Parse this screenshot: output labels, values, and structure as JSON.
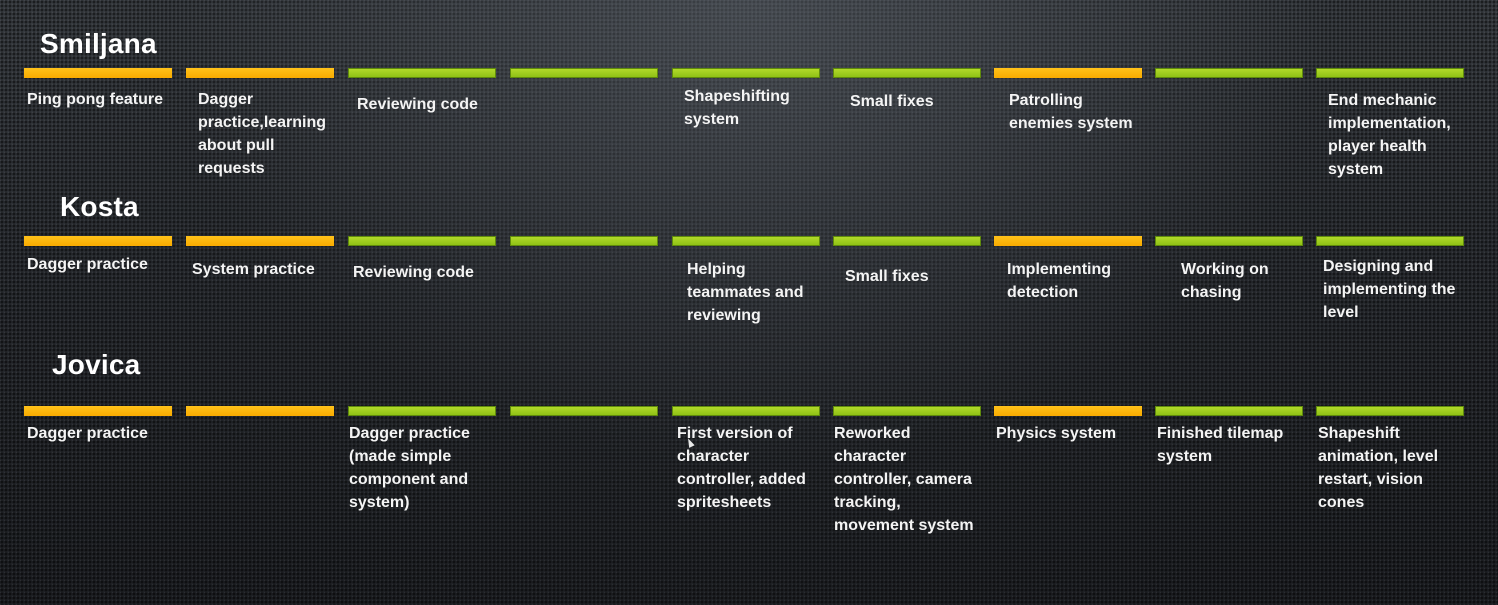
{
  "colors": {
    "done": "#f9ab00",
    "in_progress": "#8cbf13",
    "background": "#2b2e33",
    "text": "#ffffff"
  },
  "people": [
    {
      "name": "Smiljana",
      "bars": [
        "orange",
        "orange",
        "green",
        "green",
        "green",
        "green",
        "orange",
        "green",
        "green"
      ],
      "tasks": [
        "Ping pong feature",
        "Dagger practice,learning about pull requests",
        "Reviewing code",
        "",
        "Shapeshifting system",
        "Small fixes",
        "Patrolling enemies system",
        "",
        "End mechanic implementation, player health system"
      ]
    },
    {
      "name": "Kosta",
      "bars": [
        "orange",
        "orange",
        "green",
        "green",
        "green",
        "green",
        "orange",
        "green",
        "green"
      ],
      "tasks": [
        "Dagger practice",
        "System practice",
        "Reviewing code",
        "",
        "Helping teammates and reviewing",
        "Small fixes",
        "Implementing detection",
        "Working on chasing",
        "Designing and implementing the level"
      ]
    },
    {
      "name": "Jovica",
      "bars": [
        "orange",
        "orange",
        "green",
        "green",
        "green",
        "green",
        "orange",
        "green",
        "green"
      ],
      "tasks": [
        "Dagger practice",
        "",
        "Dagger practice (made simple component and system)",
        "",
        "First version of character controller, added spritesheets",
        "Reworked character controller, camera tracking, movement system",
        "Physics system",
        "Finished tilemap system",
        "Shapeshift animation, level restart, vision cones"
      ]
    }
  ]
}
